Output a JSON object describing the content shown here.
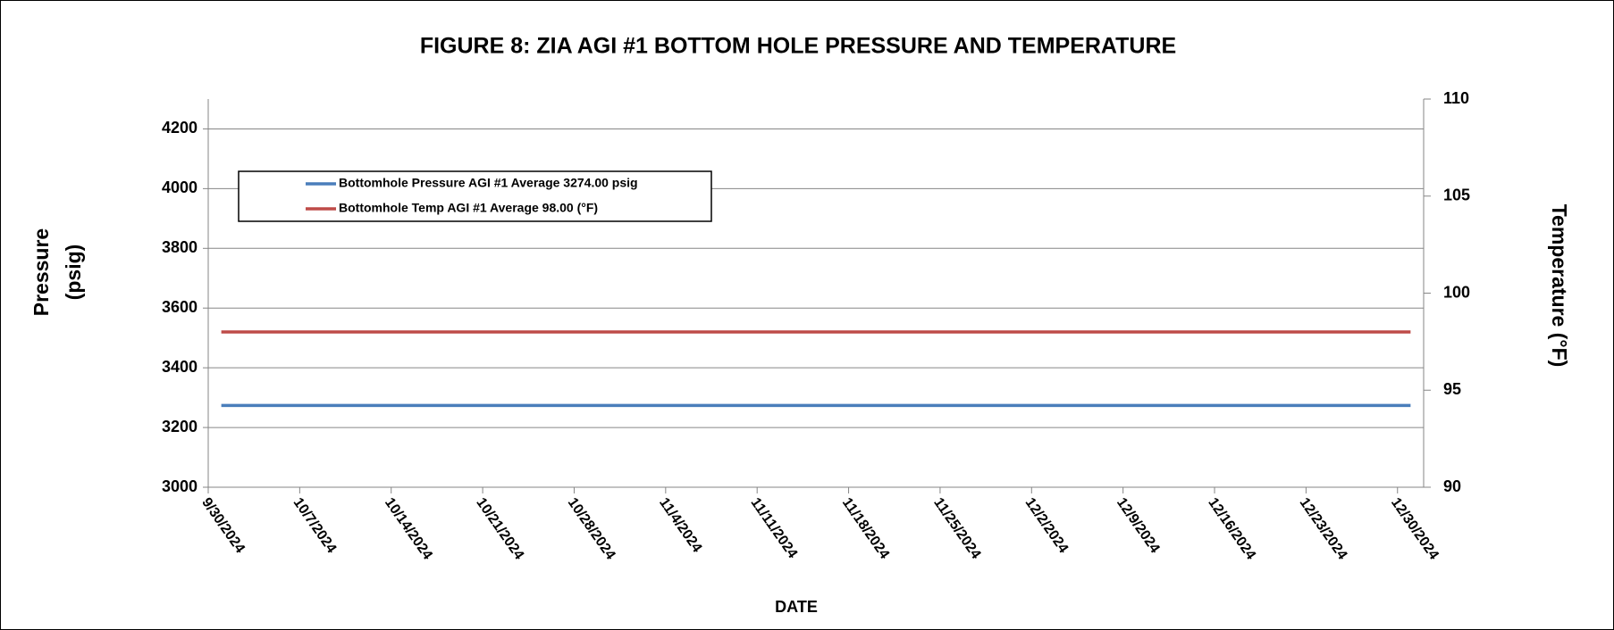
{
  "chart_data": {
    "type": "line",
    "title": "FIGURE 8:  ZIA AGI #1 BOTTOM HOLE PRESSURE AND TEMPERATURE",
    "xlabel": "DATE",
    "ylabel": [
      "Pressure",
      "(psig)"
    ],
    "y2label": "Temperature (°F)",
    "x": [
      "10/1/2024",
      "12/31/2024"
    ],
    "series": [
      {
        "name": "Bottomhole Pressure AGI #1 Average 3274.00 psig",
        "color": "#4a7ebb",
        "values": [
          3274,
          3274
        ]
      },
      {
        "name": "Bottomhole Temp AGI #1 Average 98.00 (°F)",
        "color": "#be4b48",
        "values": [
          98,
          98
        ],
        "axis": "y2"
      }
    ],
    "xlim": [
      "9/30/2024",
      "1/1/2025"
    ],
    "xticks": [
      "9/30/2024",
      "10/7/2024",
      "10/14/2024",
      "10/21/2024",
      "10/28/2024",
      "11/4/2024",
      "11/11/2024",
      "11/18/2024",
      "11/25/2024",
      "12/2/2024",
      "12/9/2024",
      "12/16/2024",
      "12/23/2024",
      "12/30/2024"
    ],
    "ylim": [
      3000,
      4300
    ],
    "yticks": [
      3000,
      3200,
      3400,
      3600,
      3800,
      4000,
      4200
    ],
    "y2lim": [
      90,
      110
    ],
    "y2ticks": [
      90,
      95,
      100,
      105,
      110
    ],
    "grid": true,
    "legend": "upper left"
  }
}
